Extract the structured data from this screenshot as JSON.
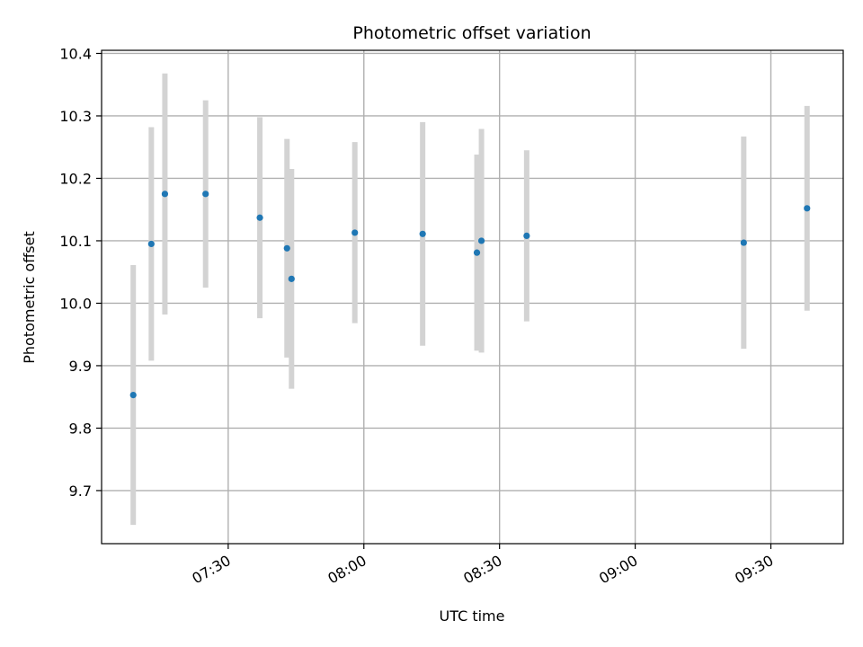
{
  "chart_data": {
    "type": "scatter",
    "title": "Photometric offset variation",
    "xlabel": "UTC time",
    "ylabel": "Photometric offset",
    "x_unit": "UTC time (HH:MM)",
    "xlim": [
      "07:02",
      "09:46"
    ],
    "ylim": [
      9.615,
      10.405
    ],
    "x_ticks": [
      "07:30",
      "08:00",
      "08:30",
      "09:00",
      "09:30"
    ],
    "y_ticks": [
      "9.7",
      "9.8",
      "9.9",
      "10.0",
      "10.1",
      "10.2",
      "10.3",
      "10.4"
    ],
    "grid": true,
    "colors": {
      "points": "#1f77b4",
      "errorbars": "#d3d3d3",
      "grid": "#b0b0b0"
    },
    "points": [
      {
        "time": "07:09",
        "y": 9.853,
        "yerr": 0.208
      },
      {
        "time": "07:13",
        "y": 10.095,
        "yerr": 0.187
      },
      {
        "time": "07:16",
        "y": 10.175,
        "yerr": 0.193
      },
      {
        "time": "07:25",
        "y": 10.175,
        "yerr": 0.15
      },
      {
        "time": "07:37",
        "y": 10.137,
        "yerr": 0.161
      },
      {
        "time": "07:43",
        "y": 10.088,
        "yerr": 0.175
      },
      {
        "time": "07:44",
        "y": 10.039,
        "yerr": 0.176
      },
      {
        "time": "07:58",
        "y": 10.113,
        "yerr": 0.145
      },
      {
        "time": "08:13",
        "y": 10.111,
        "yerr": 0.179
      },
      {
        "time": "08:25",
        "y": 10.081,
        "yerr": 0.157
      },
      {
        "time": "08:26",
        "y": 10.1,
        "yerr": 0.179
      },
      {
        "time": "08:36",
        "y": 10.108,
        "yerr": 0.137
      },
      {
        "time": "09:24",
        "y": 10.097,
        "yerr": 0.17
      },
      {
        "time": "09:38",
        "y": 10.152,
        "yerr": 0.164
      }
    ]
  }
}
